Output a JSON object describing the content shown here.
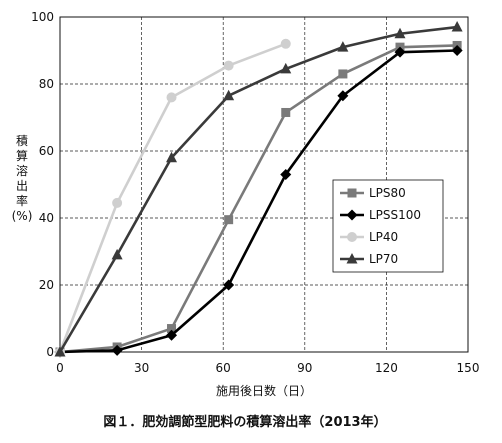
{
  "caption": "図１．肥効調節型肥料の積算溶出率（2013年）",
  "chart_data": {
    "type": "line",
    "xlabel": "施用後日数（日）",
    "ylabel": [
      "積",
      "算",
      "溶",
      "出",
      "率",
      "(%)"
    ],
    "xlim": [
      0,
      150
    ],
    "ylim": [
      0,
      100
    ],
    "xticks": [
      0,
      30,
      60,
      90,
      120,
      150
    ],
    "yticks": [
      0,
      20,
      40,
      60,
      80,
      100
    ],
    "grid": true,
    "legend_position": "right-middle",
    "series": [
      {
        "name": "LPS80",
        "color": "#7a7a7a",
        "marker": "square",
        "x": [
          0,
          21,
          41,
          62,
          83,
          104,
          125,
          146
        ],
        "y": [
          0,
          1.5,
          7,
          39.5,
          71.5,
          83,
          91,
          91.5
        ]
      },
      {
        "name": "LPSS100",
        "color": "#000000",
        "marker": "diamond",
        "x": [
          0,
          21,
          41,
          62,
          83,
          104,
          125,
          146
        ],
        "y": [
          0,
          0.5,
          5,
          20,
          53,
          76.5,
          89.5,
          90
        ]
      },
      {
        "name": "LP40",
        "color": "#cfcfcf",
        "marker": "circle",
        "x": [
          0,
          21,
          41,
          62,
          83
        ],
        "y": [
          0,
          44.5,
          76,
          85.5,
          92
        ]
      },
      {
        "name": "LP70",
        "color": "#3a3a3a",
        "marker": "triangle",
        "x": [
          0,
          21,
          41,
          62,
          83,
          104,
          125,
          146
        ],
        "y": [
          0,
          29,
          58,
          76.5,
          84.5,
          91,
          95,
          97
        ]
      }
    ]
  }
}
